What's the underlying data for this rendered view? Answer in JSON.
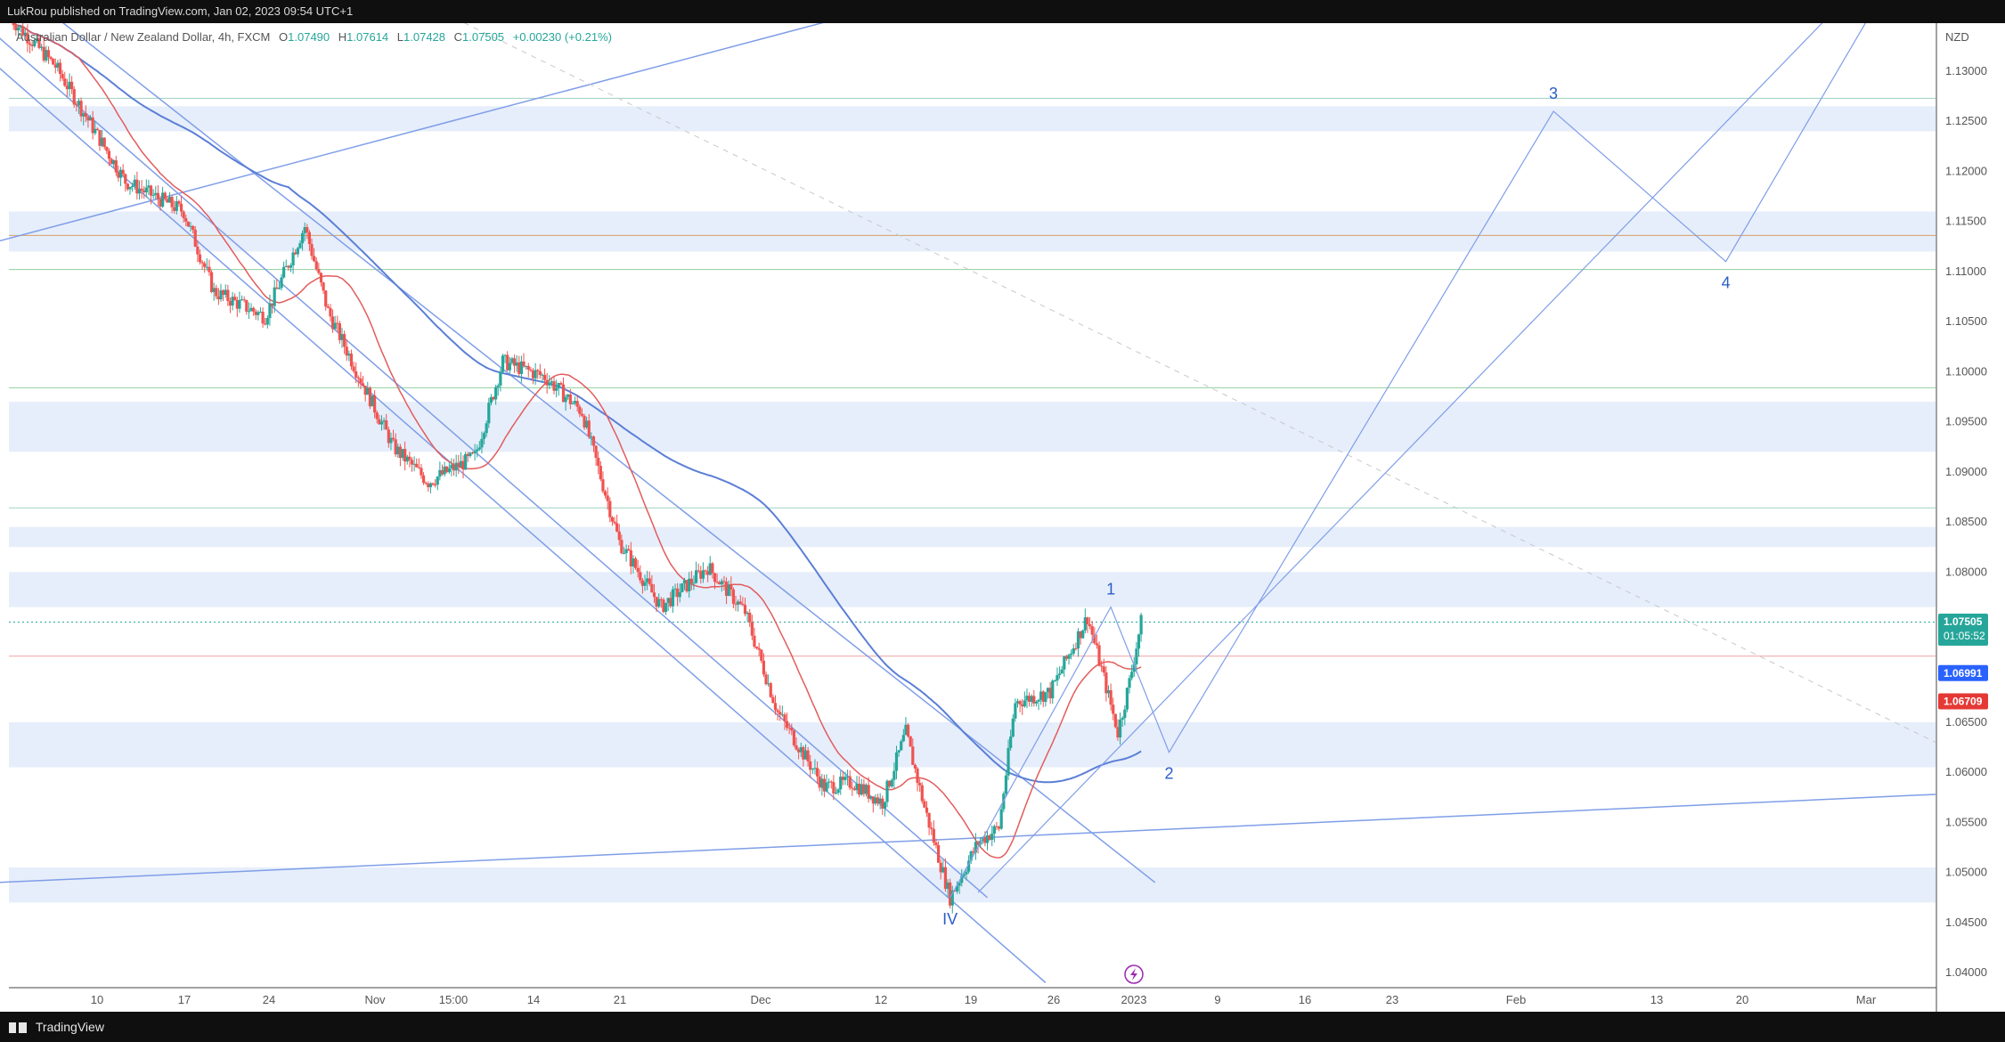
{
  "header": {
    "publisher": "LukRou published on TradingView.com, Jan 02, 2023 09:54 UTC+1"
  },
  "footer": {
    "brand": "TradingView"
  },
  "legend": {
    "symbol": "Australian Dollar / New Zealand Dollar, 4h, FXCM",
    "open_label": "O",
    "open": "1.07490",
    "high_label": "H",
    "high": "1.07614",
    "low_label": "L",
    "low": "1.07428",
    "close_label": "C",
    "close": "1.07505",
    "change": "+0.00230 (+0.21%)"
  },
  "price_tags": {
    "last_price": "1.07505",
    "countdown": "01:05:52",
    "ma_slow": "1.06991",
    "ma_fast": "1.06709"
  },
  "colors": {
    "up": "#26a69a",
    "down": "#ef5350",
    "zone": "#e6eefb",
    "channel": "#7f9ee8",
    "ma_fast": "#e35c5c",
    "ma_slow": "#5b7fd6",
    "wave": "#2a5cc9",
    "last_tag": "#26a69a",
    "ma_slow_tag": "#2962ff",
    "ma_fast_tag": "#e53935"
  },
  "chart_data": {
    "type": "candlestick",
    "currency": "NZD",
    "timeframe": "4h",
    "y_ticks": [
      "1.13000",
      "1.12500",
      "1.12000",
      "1.11500",
      "1.11000",
      "1.10500",
      "1.10000",
      "1.09500",
      "1.09000",
      "1.08500",
      "1.08000",
      "1.07500",
      "1.07000",
      "1.06500",
      "1.06000",
      "1.05500",
      "1.05000",
      "1.04500",
      "1.04000"
    ],
    "ylim": [
      1.0385,
      1.1348
    ],
    "x_ticks": [
      "10",
      "17",
      "24",
      "Nov",
      "15:00",
      "14",
      "21",
      "Dec",
      "12",
      "19",
      "26",
      "2023",
      "9",
      "16",
      "23",
      "Feb",
      "13",
      "20",
      "Mar"
    ],
    "waypoints": [
      {
        "t": 0,
        "p": 1.1355
      },
      {
        "t": 20,
        "p": 1.1305
      },
      {
        "t": 50,
        "p": 1.119
      },
      {
        "t": 75,
        "p": 1.116
      },
      {
        "t": 88,
        "p": 1.108
      },
      {
        "t": 110,
        "p": 1.1055
      },
      {
        "t": 127,
        "p": 1.1145
      },
      {
        "t": 137,
        "p": 1.106
      },
      {
        "t": 165,
        "p": 1.0925
      },
      {
        "t": 180,
        "p": 1.089
      },
      {
        "t": 200,
        "p": 1.0915
      },
      {
        "t": 212,
        "p": 1.101
      },
      {
        "t": 230,
        "p": 1.0995
      },
      {
        "t": 246,
        "p": 1.096
      },
      {
        "t": 262,
        "p": 1.083
      },
      {
        "t": 280,
        "p": 1.0765
      },
      {
        "t": 300,
        "p": 1.0805
      },
      {
        "t": 316,
        "p": 1.076
      },
      {
        "t": 330,
        "p": 1.066
      },
      {
        "t": 350,
        "p": 1.0585
      },
      {
        "t": 362,
        "p": 1.059
      },
      {
        "t": 375,
        "p": 1.057
      },
      {
        "t": 385,
        "p": 1.064
      },
      {
        "t": 393,
        "p": 1.0565
      },
      {
        "t": 404,
        "p": 1.0475
      },
      {
        "t": 416,
        "p": 1.053
      },
      {
        "t": 425,
        "p": 1.0545
      },
      {
        "t": 432,
        "p": 1.067
      },
      {
        "t": 447,
        "p": 1.068
      },
      {
        "t": 463,
        "p": 1.0755
      },
      {
        "t": 471,
        "p": 1.0685
      },
      {
        "t": 476,
        "p": 1.064
      },
      {
        "t": 481,
        "p": 1.069
      },
      {
        "t": 486,
        "p": 1.075
      }
    ],
    "zones": [
      [
        1.124,
        1.1265
      ],
      [
        1.112,
        1.116
      ],
      [
        1.092,
        1.097
      ],
      [
        1.0825,
        1.0845
      ],
      [
        1.0765,
        1.08
      ],
      [
        1.0605,
        1.065
      ],
      [
        1.047,
        1.0505
      ]
    ],
    "hlines": [
      {
        "price": 1.1273,
        "color": "#9fd1c3"
      },
      {
        "price": 1.1136,
        "color": "#d9a066"
      },
      {
        "price": 1.1102,
        "color": "#8fd09e"
      },
      {
        "price": 1.0984,
        "color": "#8fd09e"
      },
      {
        "price": 1.0864,
        "color": "#9fd1c3"
      },
      {
        "price": 1.075,
        "color": "#26a69a",
        "dotted": true
      },
      {
        "price": 1.0716,
        "color": "#f0a0a0"
      }
    ],
    "lines": [
      {
        "p1": [
          -5,
          1.14
        ],
        "p2": [
          492,
          1.049
        ]
      },
      {
        "p1": [
          -5,
          1.1305
        ],
        "p2": [
          445,
          1.039
        ]
      },
      {
        "p1": [
          -5,
          1.1335
        ],
        "p2": [
          420,
          1.0475
        ]
      },
      {
        "p1": [
          -5,
          1.049
        ],
        "p2": [
          827,
          1.0578
        ]
      },
      {
        "p1": [
          -5,
          1.113
        ],
        "p2": [
          433,
          1.14
        ]
      },
      {
        "p1": [
          150,
          1.14
        ],
        "p2": [
          827,
          1.063
        ],
        "dashed": true
      }
    ],
    "wave_path": [
      [
        404,
        1.0475
      ],
      [
        473,
        1.0765
      ],
      [
        498,
        1.062
      ],
      [
        663,
        1.126
      ],
      [
        737,
        1.111
      ],
      [
        810,
        1.14
      ]
    ],
    "wave_extra": [
      [
        416,
        1.048
      ],
      [
        800,
        1.14
      ]
    ],
    "wave_labels": [
      {
        "text": "IV",
        "t": 404,
        "p": 1.0475,
        "pos": "below"
      },
      {
        "text": "1",
        "t": 473,
        "p": 1.0765,
        "pos": "above"
      },
      {
        "text": "2",
        "t": 498,
        "p": 1.062,
        "pos": "below"
      },
      {
        "text": "3",
        "t": 663,
        "p": 1.126,
        "pos": "above"
      },
      {
        "text": "4",
        "t": 737,
        "p": 1.111,
        "pos": "below"
      }
    ]
  }
}
